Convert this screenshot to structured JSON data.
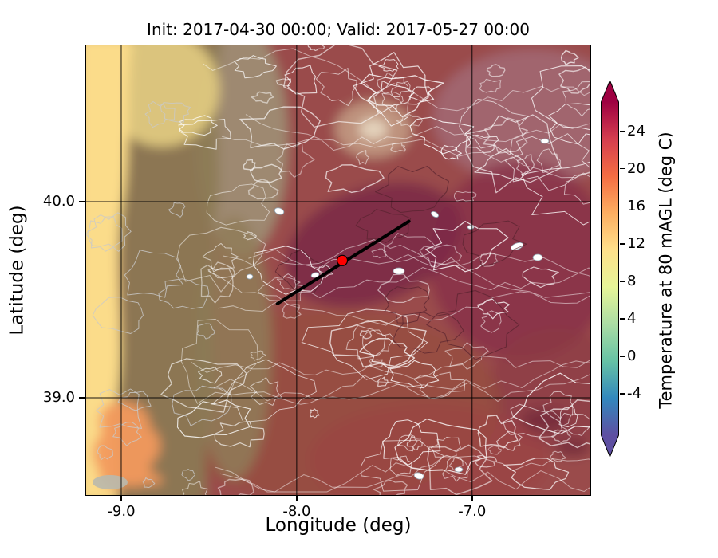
{
  "figure": {
    "title": "Init: 2017-04-30 00:00; Valid: 2017-05-27 00:00"
  },
  "axes": {
    "xlabel": "Longitude (deg)",
    "ylabel": "Latitude (deg)",
    "x_ticks": [
      {
        "value": -9.0,
        "label": "-9.0"
      },
      {
        "value": -8.0,
        "label": "-8.0"
      },
      {
        "value": -7.0,
        "label": "-7.0"
      }
    ],
    "y_ticks": [
      {
        "value": 40.0,
        "label": "40.0"
      },
      {
        "value": 39.0,
        "label": "39.0"
      }
    ]
  },
  "colorbar": {
    "label": "Temperature at 80 mAGL (deg C)",
    "ticks": [
      {
        "value": 24,
        "label": "24"
      },
      {
        "value": 20,
        "label": "20"
      },
      {
        "value": 16,
        "label": "16"
      },
      {
        "value": 12,
        "label": "12"
      },
      {
        "value": 8,
        "label": "8"
      },
      {
        "value": 4,
        "label": "4"
      },
      {
        "value": 0,
        "label": "0"
      },
      {
        "value": -4,
        "label": "-4"
      }
    ],
    "vmin": -8.4,
    "vmax": 27.1,
    "colors": [
      "#5e4fa2",
      "#3288bd",
      "#66c2a5",
      "#abdda4",
      "#e6f598",
      "#fee08b",
      "#fdae61",
      "#f46d43",
      "#d53e4f",
      "#9e0142"
    ]
  },
  "chart_data": {
    "type": "heatmap",
    "title": "Init: 2017-04-30 00:00; Valid: 2017-05-27 00:00",
    "xlabel": "Longitude (deg)",
    "ylabel": "Latitude (deg)",
    "xlim": [
      -9.2,
      -6.326
    ],
    "ylim": [
      38.504,
      40.797
    ],
    "x_ticks": [
      -9.0,
      -8.0,
      -7.0
    ],
    "y_ticks": [
      39.0,
      40.0
    ],
    "grid": true,
    "colorbar_label": "Temperature at 80 mAGL (deg C)",
    "colorbar_ticks": [
      -4,
      0,
      4,
      8,
      12,
      16,
      20,
      24
    ],
    "colormap": "spectral-reversed",
    "grid_lon": [
      -9.1,
      -8.7,
      -8.3,
      -7.9,
      -7.5,
      -7.1,
      -6.7
    ],
    "grid_lat": [
      40.6,
      40.2,
      39.8,
      39.4,
      39.0,
      38.7
    ],
    "temperature_c": [
      [
        12,
        16,
        19,
        21,
        22,
        21,
        21
      ],
      [
        12,
        15,
        20,
        22,
        23,
        22,
        22
      ],
      [
        12,
        16,
        21,
        24,
        25,
        24,
        23
      ],
      [
        13,
        17,
        21,
        23,
        24,
        24,
        23
      ],
      [
        14,
        18,
        21,
        22,
        23,
        24,
        23
      ],
      [
        15,
        18,
        21,
        23,
        23,
        24,
        24
      ]
    ],
    "overlays": {
      "transect": {
        "from_lonlat": [
          -8.11,
          39.48
        ],
        "to_lonlat": [
          -7.36,
          39.9
        ],
        "color": "#000000"
      },
      "marker": {
        "lonlat": [
          -7.74,
          39.7
        ],
        "color": "#ff0000"
      }
    }
  }
}
